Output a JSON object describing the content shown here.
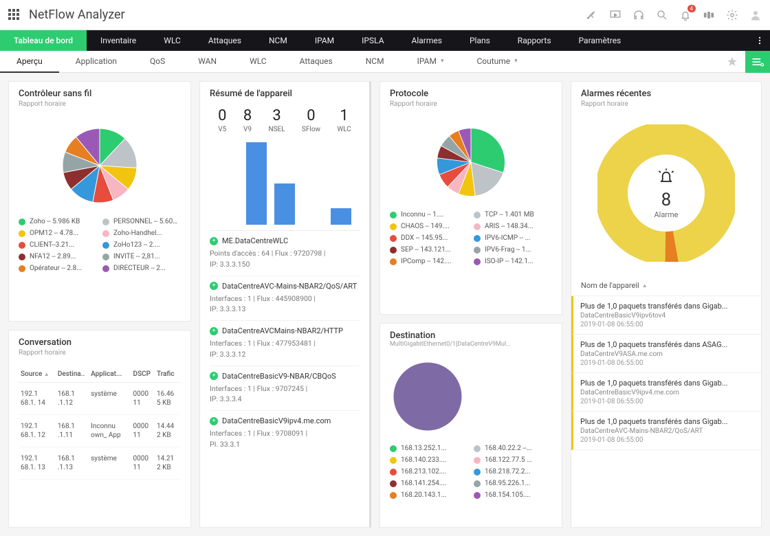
{
  "app": {
    "title": "NetFlow Analyzer",
    "notification_count": "4"
  },
  "mainnav": {
    "items": [
      "Tableau de bord",
      "Inventaire",
      "WLC",
      "Attaques",
      "NCM",
      "IPAM",
      "IPSLA",
      "Alarmes",
      "Plans",
      "Rapports",
      "Paramètres"
    ],
    "active_index": 0
  },
  "subnav": {
    "items": [
      "Aperçu",
      "Application",
      "QoS",
      "WAN",
      "WLC",
      "Attaques",
      "NCM",
      "IPAM",
      "Coutume"
    ],
    "active_index": 0,
    "dropdown_indices": [
      7,
      8
    ]
  },
  "wireless": {
    "title": "Contrôleur sans fil",
    "subtitle": "Rapport horaire",
    "pie": {
      "slices": [
        {
          "color": "#2ecc71",
          "pct": 12
        },
        {
          "color": "#bdc3c7",
          "pct": 14
        },
        {
          "color": "#f1c40f",
          "pct": 10
        },
        {
          "color": "#f7b6c2",
          "pct": 8
        },
        {
          "color": "#e74c3c",
          "pct": 9
        },
        {
          "color": "#3498db",
          "pct": 11
        },
        {
          "color": "#8e2f2f",
          "pct": 8
        },
        {
          "color": "#95a5a6",
          "pct": 9
        },
        {
          "color": "#e67e22",
          "pct": 8
        },
        {
          "color": "#9b59b6",
          "pct": 11
        }
      ]
    },
    "legend": [
      {
        "color": "#2ecc71",
        "label": "Zoho -- 5.986 KB"
      },
      {
        "color": "#bdc3c7",
        "label": "PERSONNEL -- 5.607..."
      },
      {
        "color": "#f1c40f",
        "label": "OPM12 -- 4.78..."
      },
      {
        "color": "#f7b6c2",
        "label": "Zoho-Handhel..."
      },
      {
        "color": "#e74c3c",
        "label": "CLIENT--3.21..."
      },
      {
        "color": "#3498db",
        "label": "ZoHo123 -- 2...."
      },
      {
        "color": "#8e2f2f",
        "label": "NFA12 -- 2.89..."
      },
      {
        "color": "#95a5a6",
        "label": "INVITÉ -- 2,81..."
      },
      {
        "color": "#e67e22",
        "label": "Opérateur -- 2.8..."
      },
      {
        "color": "#9b59b6",
        "label": "DIRECTEUR -- 2..."
      }
    ]
  },
  "conversation": {
    "title": "Conversation",
    "subtitle": "Rapport horaire",
    "columns": [
      "Source",
      "Destina..",
      "Applicat...",
      "DSCP",
      "Trafic"
    ],
    "rows": [
      [
        "192.1 68.1. 14",
        "168.1 .1.12",
        "système",
        "0000 11",
        "16.46 5 KB"
      ],
      [
        "192.1 68.1. 12",
        "168.1 .1.11",
        "Inconnu own_ App",
        "0000 11",
        "14.44 2 KB"
      ],
      [
        "192.1 68.1. 13",
        "168.1 .1.13",
        "système",
        "0000 11",
        "14.21 2 KB"
      ]
    ]
  },
  "device_summary": {
    "title": "Résumé de l'appareil",
    "stats": [
      {
        "val": "0",
        "lbl": "V5"
      },
      {
        "val": "8",
        "lbl": "V9"
      },
      {
        "val": "3",
        "lbl": "NSEL"
      },
      {
        "val": "0",
        "lbl": "SFlow"
      },
      {
        "val": "1",
        "lbl": "WLC"
      }
    ],
    "bars": {
      "color": "#4a90e2",
      "heights": [
        0,
        120,
        60,
        0,
        24
      ]
    },
    "devices": [
      {
        "name": "ME.DataCentreWLC",
        "lines": [
          "Points d'accès : 64 | Flux : 9720798 |",
          "IP: 3.3.3.150"
        ]
      },
      {
        "name": "DataCentreAVC-Mains-NBAR2/QoS/ART",
        "lines": [
          "Interfaces : 1 | Flux : 445908900 |",
          "IP: 3.3.3.13"
        ]
      },
      {
        "name": "DataCentreAVCMains-NBAR2/HTTP",
        "lines": [
          "Interfaces : 1 | Flux : 477953481 |",
          "IP: 3.3.3.12"
        ]
      },
      {
        "name": "DataCentreBasicV9-NBAR/CBQoS",
        "lines": [
          "Interfaces : 1 | Flux : 9707245 |",
          "IP: 3.3.3.4"
        ]
      },
      {
        "name": "DataCentreBasicV9ipv4.me.com",
        "lines": [
          "Interfaces : 1 | Flux : 9708091 |",
          "PI. 33.3.1"
        ]
      }
    ]
  },
  "protocol": {
    "title": "Protocole",
    "subtitle": "Rapport horaire",
    "pie": {
      "slices": [
        {
          "color": "#2ecc71",
          "pct": 30
        },
        {
          "color": "#bdc3c7",
          "pct": 18
        },
        {
          "color": "#f1c40f",
          "pct": 8
        },
        {
          "color": "#f7b6c2",
          "pct": 6
        },
        {
          "color": "#e74c3c",
          "pct": 7
        },
        {
          "color": "#3498db",
          "pct": 8
        },
        {
          "color": "#8e2f2f",
          "pct": 6
        },
        {
          "color": "#95a5a6",
          "pct": 6
        },
        {
          "color": "#e67e22",
          "pct": 5
        },
        {
          "color": "#9b59b6",
          "pct": 6
        }
      ]
    },
    "legend": [
      {
        "color": "#2ecc71",
        "label": "Inconnu -- 1...."
      },
      {
        "color": "#bdc3c7",
        "label": "TCP -- 1.401 MB"
      },
      {
        "color": "#f1c40f",
        "label": "CHAOS -- 149...."
      },
      {
        "color": "#f7b6c2",
        "label": "ARIS -- 148.34..."
      },
      {
        "color": "#e74c3c",
        "label": "DDX -- 145.95..."
      },
      {
        "color": "#3498db",
        "label": "IPV6-ICMP -- ..."
      },
      {
        "color": "#8e2f2f",
        "label": "SEP -- 143.121..."
      },
      {
        "color": "#95a5a6",
        "label": "IPV6-Frag -- 1..."
      },
      {
        "color": "#e67e22",
        "label": "IPComp -- 142...."
      },
      {
        "color": "#9b59b6",
        "label": "ISO-IP -- 142.1..."
      }
    ]
  },
  "destination": {
    "title": "Destination",
    "subtitle": "MultiGigabitEthernet0/1[DataCentreV9Mul...",
    "pie_color": "#7e6aa5",
    "legend": [
      {
        "color": "#2ecc71",
        "label": "168.13.252.1..."
      },
      {
        "color": "#bdc3c7",
        "label": "168.40.22.2 --..."
      },
      {
        "color": "#f1c40f",
        "label": "168.140.233...."
      },
      {
        "color": "#f7b6c2",
        "label": "168.122.77.5 ..."
      },
      {
        "color": "#e74c3c",
        "label": "168.213.102...."
      },
      {
        "color": "#3498db",
        "label": "168.218.72.2..."
      },
      {
        "color": "#8e2f2f",
        "label": "168.141.254...."
      },
      {
        "color": "#95a5a6",
        "label": "168.95.226.1..."
      },
      {
        "color": "#e67e22",
        "label": "168.20.143.1..."
      },
      {
        "color": "#9b59b6",
        "label": "168.154.105...."
      }
    ]
  },
  "alarms": {
    "title": "Alarmes récentes",
    "subtitle": "Rapport horaire",
    "donut": {
      "main_color": "#ecd34a",
      "ring_width": 24,
      "alert_color": "#e67e22",
      "alert_pct": 3
    },
    "count": "8",
    "count_label": "Alarme",
    "list_header": "Nom de l'appareil",
    "items": [
      {
        "msg": "Plus de 1,0 paquets transférés dans Gigab...",
        "dev": "DataCentreBasicV9ipv6tov4",
        "time": "2019-01-08 06:55:00"
      },
      {
        "msg": "Plus de 1,0 paquets transférés dans ASAG...",
        "dev": "DataCentreV9ASA.me.com",
        "time": "2019-01-08 06:55:00"
      },
      {
        "msg": "Plus de 1,0 paquets transférés dans Gigab...",
        "dev": "DataCentreBasicV9ipv4.me.com",
        "time": "2019-01-08 06:55:00"
      },
      {
        "msg": "Plus de 1,0 paquets transférés dans Gigab...",
        "dev": "DataCentreAVC-Mains-NBAR2/QoS/ART",
        "time": "2019-01-08 06:55:00"
      }
    ]
  }
}
